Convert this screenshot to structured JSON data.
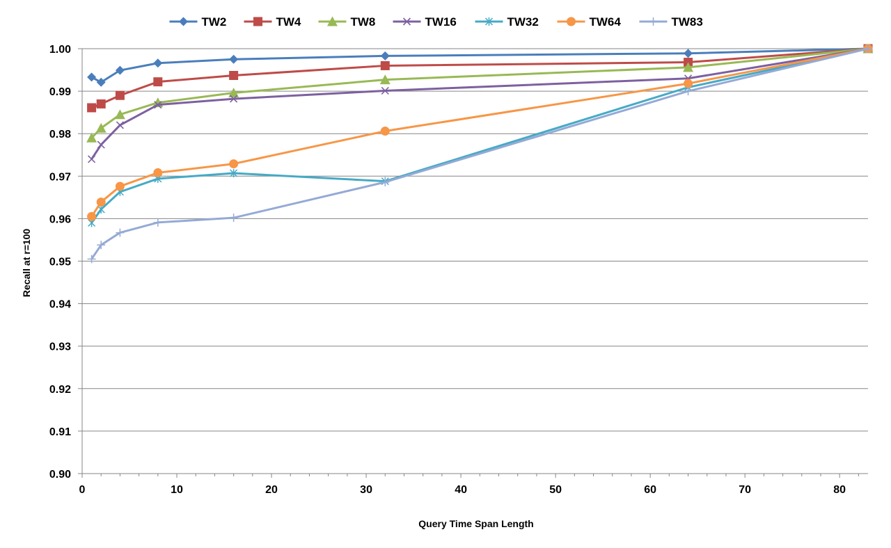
{
  "chart_data": {
    "type": "line",
    "title": "",
    "xlabel": "Query Time Span Length",
    "ylabel": "Recall at r=100",
    "xlim": [
      0,
      83
    ],
    "ylim": [
      0.9,
      1.0
    ],
    "x_ticks": [
      0,
      10,
      20,
      30,
      40,
      50,
      60,
      70,
      80
    ],
    "x_tick_labels": [
      "0",
      "10",
      "20",
      "30",
      "40",
      "50",
      "60",
      "70",
      "80"
    ],
    "y_ticks": [
      0.9,
      0.91,
      0.92,
      0.93,
      0.94,
      0.95,
      0.96,
      0.97,
      0.98,
      0.99,
      1.0
    ],
    "y_tick_labels": [
      "0.90",
      "0.91",
      "0.92",
      "0.93",
      "0.94",
      "0.95",
      "0.96",
      "0.97",
      "0.98",
      "0.99",
      "1.00"
    ],
    "grid": "horizontal",
    "legend_position": "top",
    "x": [
      1,
      2,
      4,
      8,
      16,
      32,
      64,
      83
    ],
    "series": [
      {
        "name": "TW2",
        "color": "#4a7ebb",
        "marker": "diamond",
        "values": [
          0.9933,
          0.9921,
          0.9949,
          0.9966,
          0.9975,
          0.9983,
          0.9989,
          1.0
        ]
      },
      {
        "name": "TW4",
        "color": "#be4b48",
        "marker": "square",
        "values": [
          0.9861,
          0.987,
          0.989,
          0.9922,
          0.9937,
          0.996,
          0.9968,
          1.0
        ]
      },
      {
        "name": "TW8",
        "color": "#98b954",
        "marker": "triangle",
        "values": [
          0.979,
          0.9813,
          0.9845,
          0.9873,
          0.9896,
          0.9927,
          0.9956,
          1.0
        ]
      },
      {
        "name": "TW16",
        "color": "#7d60a0",
        "marker": "x",
        "values": [
          0.974,
          0.9774,
          0.982,
          0.9868,
          0.9882,
          0.9901,
          0.993,
          1.0
        ]
      },
      {
        "name": "TW32",
        "color": "#46aac5",
        "marker": "star",
        "values": [
          0.959,
          0.9622,
          0.9663,
          0.9694,
          0.9707,
          0.9688,
          0.9909,
          1.0
        ]
      },
      {
        "name": "TW64",
        "color": "#f79646",
        "marker": "circle",
        "values": [
          0.9605,
          0.9639,
          0.9676,
          0.9708,
          0.9729,
          0.9806,
          0.9918,
          1.0
        ]
      },
      {
        "name": "TW83",
        "color": "#94aad6",
        "marker": "plus",
        "values": [
          0.9505,
          0.9538,
          0.9567,
          0.9591,
          0.9602,
          0.9686,
          0.99,
          1.0
        ]
      }
    ]
  }
}
